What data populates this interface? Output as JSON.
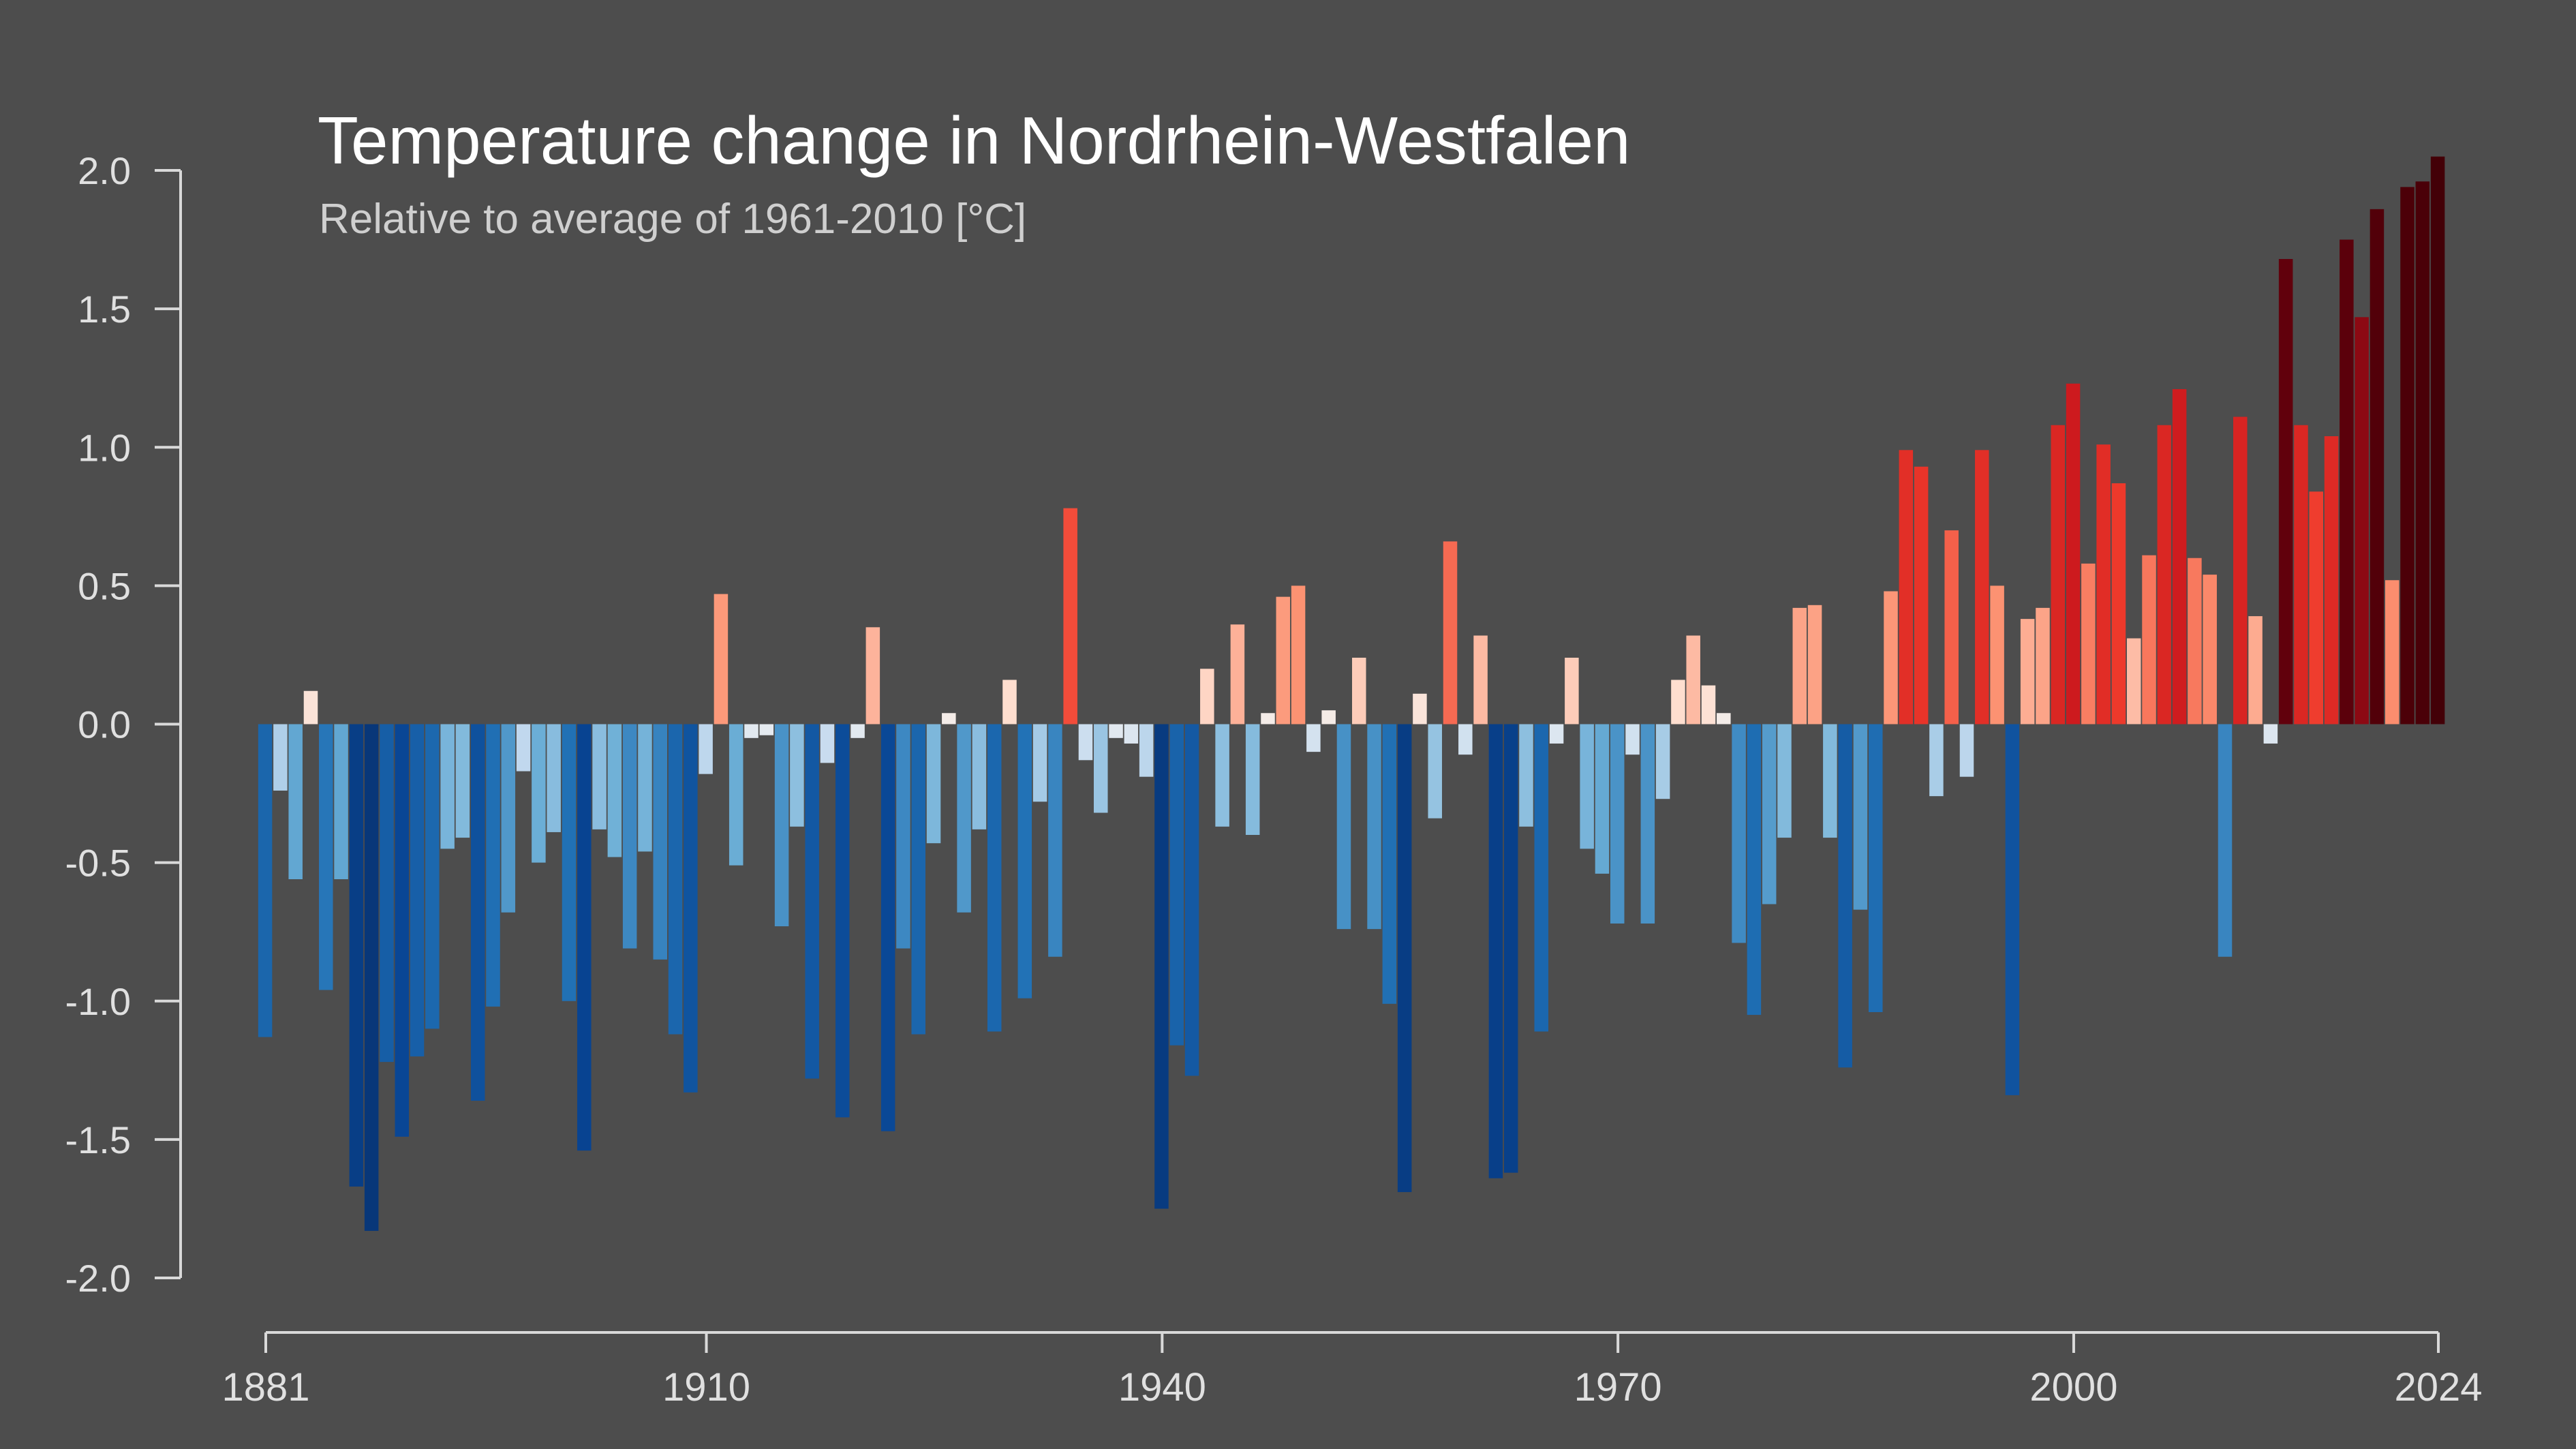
{
  "colors": {
    "background": "#4d4d4d",
    "axis": "#d9d9d9",
    "title": "#ffffff",
    "subtitle": "#cfcfcf",
    "tick_label": "#e0e0e0"
  },
  "chart_data": {
    "type": "bar",
    "title": "Temperature change in Nordrhein-Westfalen",
    "subtitle": "Relative to average of 1961-2010  [°C]",
    "xlabel": "",
    "ylabel": "",
    "ylim": [
      -2.0,
      2.0
    ],
    "xlim": [
      1881,
      2024
    ],
    "y_ticks": [
      2.0,
      1.5,
      1.0,
      0.5,
      0.0,
      -0.5,
      -1.0,
      -1.5,
      -2.0
    ],
    "y_tick_labels": [
      "2.0",
      "1.5",
      "1.0",
      "0.5",
      "0.0",
      "-0.5",
      "-1.0",
      "-1.5",
      "-2.0"
    ],
    "x_ticks": [
      1881,
      1910,
      1940,
      1970,
      2000,
      2024
    ],
    "x_tick_labels": [
      "1881",
      "1910",
      "1940",
      "1970",
      "2000",
      "2024"
    ],
    "grid": false,
    "legend": "none",
    "color_scale": "blue (cold) to red (warm) by anomaly",
    "x_start": 1881,
    "values": [
      -1.13,
      -0.24,
      -0.56,
      0.12,
      -0.96,
      -0.56,
      -1.67,
      -1.83,
      -1.22,
      -1.49,
      -1.2,
      -1.1,
      -0.45,
      -0.41,
      -1.36,
      -1.02,
      -0.68,
      -0.17,
      -0.5,
      -0.39,
      -1.0,
      -1.54,
      -0.38,
      -0.48,
      -0.81,
      -0.46,
      -0.85,
      -1.12,
      -1.33,
      -0.18,
      0.47,
      -0.51,
      -0.05,
      -0.04,
      -0.73,
      -0.37,
      -1.28,
      -0.14,
      -1.42,
      -0.05,
      0.35,
      -1.47,
      -0.81,
      -1.12,
      -0.43,
      0.04,
      -0.68,
      -0.38,
      -1.11,
      0.16,
      -0.99,
      -0.28,
      -0.84,
      0.78,
      -0.13,
      -0.32,
      -0.05,
      -0.07,
      -0.19,
      -1.75,
      -1.16,
      -1.27,
      0.2,
      -0.37,
      0.36,
      -0.4,
      0.04,
      0.46,
      0.5,
      -0.1,
      0.05,
      -0.74,
      0.24,
      -0.74,
      -1.01,
      -1.69,
      0.11,
      -0.34,
      0.66,
      -0.11,
      0.32,
      -1.64,
      -1.62,
      -0.37,
      -1.11,
      -0.07,
      0.24,
      -0.45,
      -0.54,
      -0.72,
      -0.11,
      -0.72,
      -0.27,
      0.16,
      0.32,
      0.14,
      0.04,
      -0.79,
      -1.05,
      -0.65,
      -0.41,
      0.42,
      0.43,
      -0.41,
      -1.24,
      -0.67,
      -1.04,
      0.48,
      0.99,
      0.93,
      -0.26,
      0.7,
      -0.19,
      0.99,
      0.5,
      -1.34,
      0.38,
      0.42,
      1.08,
      1.23,
      0.58,
      1.01,
      0.87,
      0.31,
      0.61,
      1.08,
      1.21,
      0.6,
      0.54,
      -0.84,
      1.11,
      0.39,
      -0.07,
      1.68,
      1.08,
      0.84,
      1.04,
      1.75,
      1.47,
      1.86,
      0.52,
      1.94,
      1.96,
      2.05
    ]
  }
}
